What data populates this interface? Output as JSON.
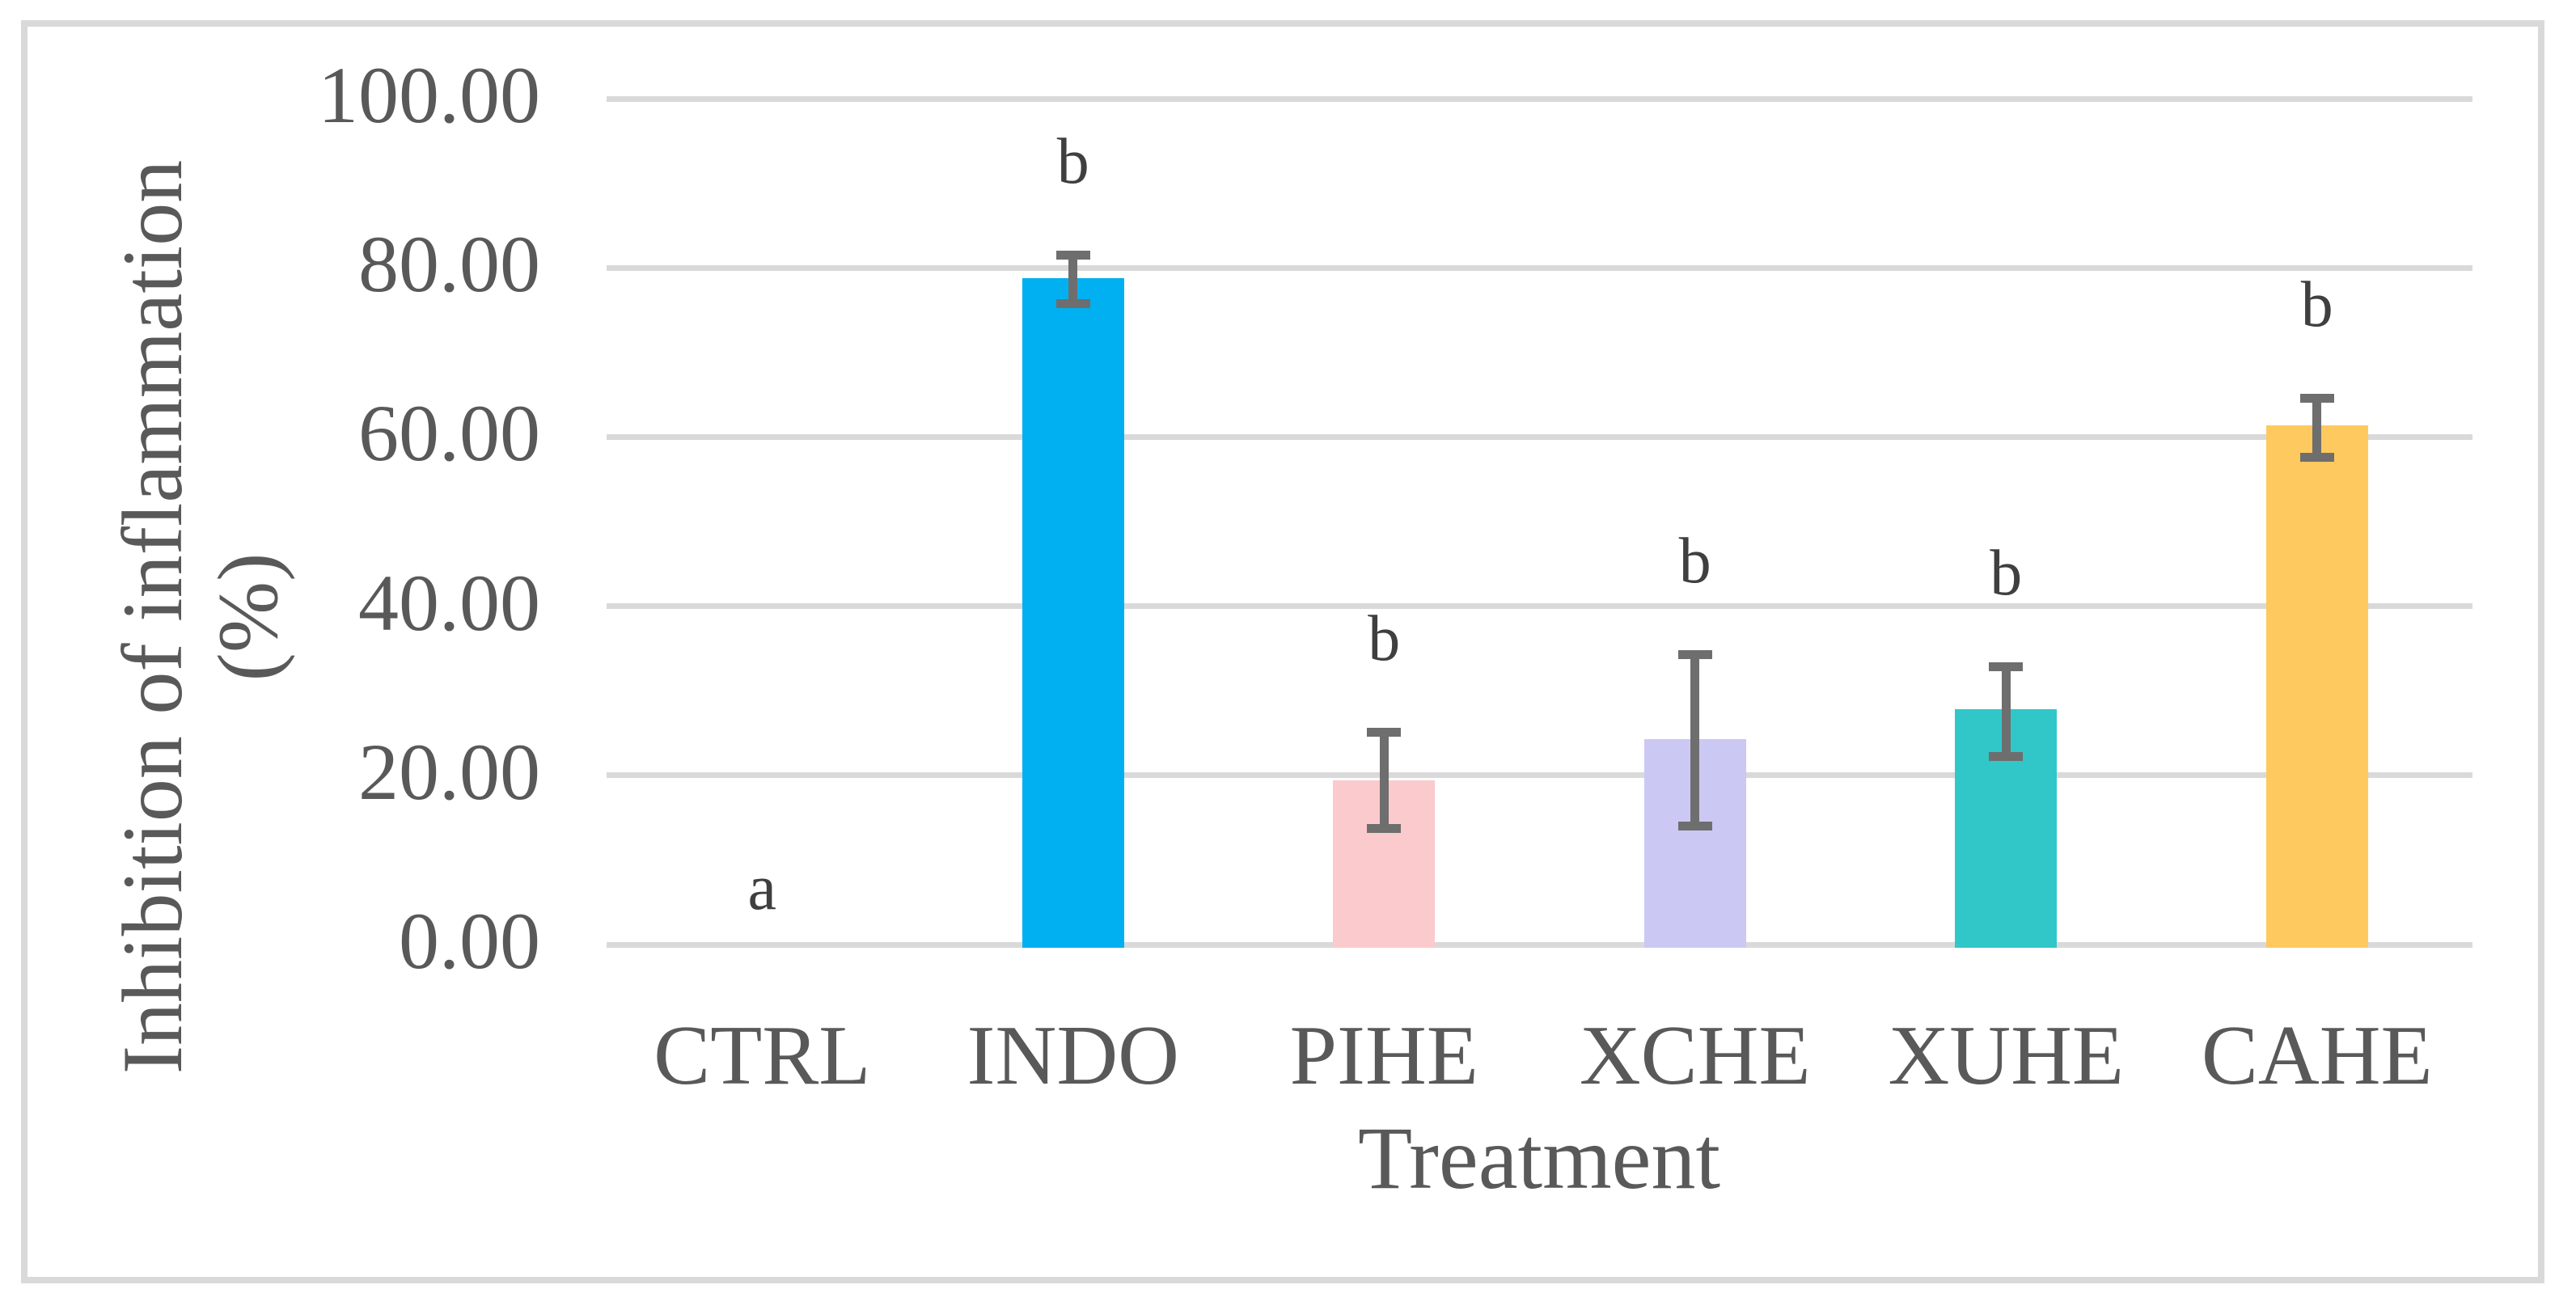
{
  "figure": {
    "background_color": "#FFFFFF",
    "border_color": "#D9D9D9",
    "axis_text_color": "#595959",
    "sig_letter_color": "#3F3F3F",
    "error_bar_color": "#6E6E6E",
    "gridline_color": "#D9D9D9"
  },
  "chart_data": {
    "type": "bar",
    "title": "",
    "xlabel": "Treatment",
    "ylabel": "Inhibition of inflammation (%)",
    "ylabel_lines": [
      "Inhibition of inflammation",
      "(%)"
    ],
    "categories": [
      "CTRL",
      "INDO",
      "PIHE",
      "XCHE",
      "XUHE",
      "CAHE"
    ],
    "values": [
      0,
      78.8,
      19.4,
      24.3,
      27.8,
      61.4
    ],
    "error_low": [
      null,
      75.2,
      13.2,
      13.5,
      21.7,
      57.1
    ],
    "error_high": [
      null,
      82.0,
      25.6,
      34.8,
      33.4,
      65.1
    ],
    "sig_letters": [
      "a",
      "b",
      "b",
      "b",
      "b",
      "b"
    ],
    "bar_colors": [
      "none",
      "#00B0F0",
      "#FBCACD",
      "#CCC8F4",
      "#31C7C9",
      "#FEC95F"
    ],
    "ylim": [
      0,
      100
    ],
    "ytick_values": [
      0,
      20,
      40,
      60,
      80,
      100
    ],
    "ytick_labels": [
      "0.00",
      "20.00",
      "40.00",
      "60.00",
      "80.00",
      "100.00"
    ],
    "grid": true,
    "legend_position": "none"
  }
}
